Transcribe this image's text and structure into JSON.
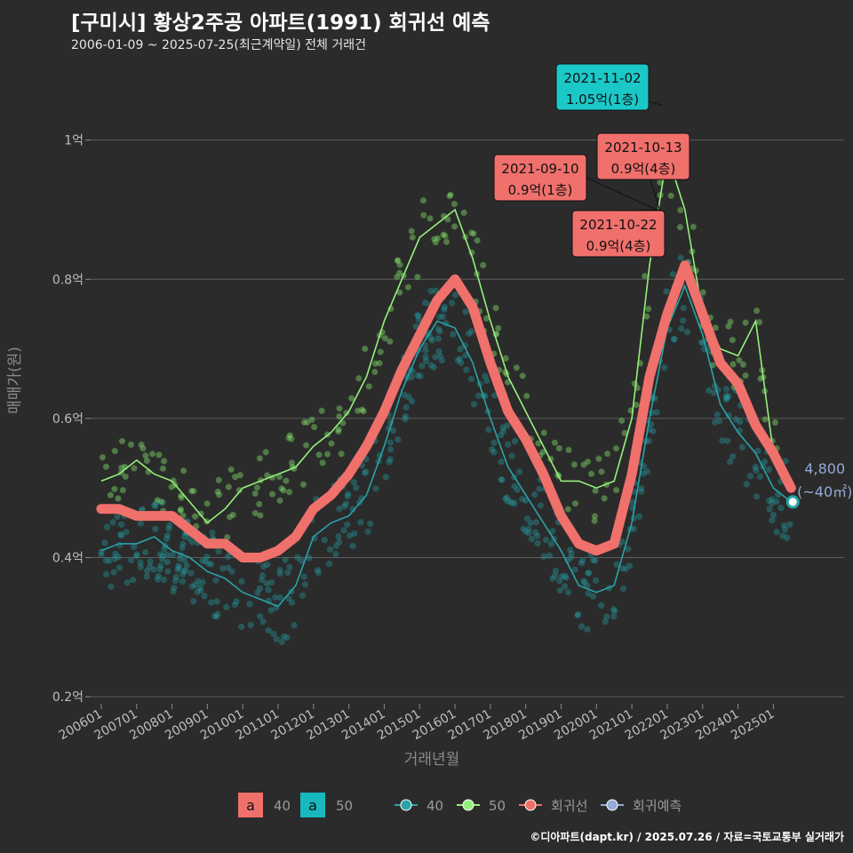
{
  "title": "[구미시] 황상2주공 아파트(1991) 회귀선 예측",
  "subtitle": "2006-01-09 ~ 2025-07-25(최근계약일) 전체 거래건",
  "credit": "©디아파트(dapt.kr) / 2025.07.26 / 자료=국토교통부 실거래가",
  "colors": {
    "s40": "#2aa3a8",
    "s50": "#94f07a",
    "reg": "#f0706c",
    "pred": "#93a9d6",
    "ann_teal": "#1bc8c8",
    "ann_red": "#f0706c",
    "grid": "#5e5e5e"
  },
  "chart_data": {
    "type": "scatter",
    "xlabel": "거래년월",
    "ylabel": "매매가(원)",
    "x_tick_labels": [
      "200601",
      "200701",
      "200801",
      "200901",
      "201001",
      "201101",
      "201201",
      "201301",
      "201401",
      "201501",
      "201601",
      "201701",
      "201801",
      "201901",
      "202001",
      "202101",
      "202201",
      "202301",
      "202401",
      "202501"
    ],
    "y_tick_labels": [
      "0.2억",
      "0.4억",
      "0.6억",
      "0.8억",
      "1억"
    ],
    "y_ticks": [
      0.2,
      0.4,
      0.6,
      0.8,
      1.0
    ],
    "ylim": [
      0.19,
      1.08
    ],
    "xlim": [
      2005.7,
      2027.0
    ],
    "grid": true,
    "legend": {
      "position": "bottom",
      "fill_key": "a",
      "fill_items": [
        {
          "label": "40",
          "color": "#f0706c"
        },
        {
          "label": "50",
          "color": "#17b9be"
        }
      ],
      "line_items": [
        {
          "label": "40",
          "color": "#2aa3a8"
        },
        {
          "label": "50",
          "color": "#94f07a"
        },
        {
          "label": "회귀선",
          "color": "#f0706c"
        },
        {
          "label": "회귀예측",
          "color": "#93a9d6"
        }
      ]
    },
    "series": [
      {
        "name": "40",
        "type": "line",
        "x": [
          2006.0,
          2006.5,
          2007.0,
          2007.5,
          2008.0,
          2008.5,
          2009.0,
          2009.5,
          2010.0,
          2010.5,
          2011.0,
          2011.5,
          2012.0,
          2012.5,
          2013.0,
          2013.5,
          2014.0,
          2014.5,
          2015.0,
          2015.5,
          2016.0,
          2016.5,
          2017.0,
          2017.5,
          2018.0,
          2018.5,
          2019.0,
          2019.5,
          2020.0,
          2020.5,
          2021.0,
          2021.5,
          2022.0,
          2022.5,
          2023.0,
          2023.5,
          2024.0,
          2024.5,
          2025.0,
          2025.5
        ],
        "y": [
          0.41,
          0.42,
          0.42,
          0.43,
          0.41,
          0.4,
          0.38,
          0.37,
          0.35,
          0.34,
          0.33,
          0.36,
          0.43,
          0.45,
          0.46,
          0.49,
          0.56,
          0.64,
          0.7,
          0.74,
          0.73,
          0.68,
          0.6,
          0.53,
          0.49,
          0.45,
          0.41,
          0.36,
          0.35,
          0.36,
          0.45,
          0.6,
          0.73,
          0.79,
          0.72,
          0.62,
          0.58,
          0.55,
          0.5,
          0.48
        ]
      },
      {
        "name": "50",
        "type": "line",
        "x": [
          2006.0,
          2006.5,
          2007.0,
          2007.5,
          2008.0,
          2008.5,
          2009.0,
          2009.5,
          2010.0,
          2010.5,
          2011.0,
          2011.5,
          2012.0,
          2012.5,
          2013.0,
          2013.5,
          2014.0,
          2014.5,
          2015.0,
          2015.5,
          2016.0,
          2016.5,
          2017.0,
          2017.5,
          2018.0,
          2018.5,
          2019.0,
          2019.5,
          2020.0,
          2020.5,
          2021.0,
          2021.5,
          2022.0,
          2022.5,
          2023.0,
          2023.5,
          2024.0,
          2024.5,
          2025.0,
          2025.5
        ],
        "y": [
          0.51,
          0.52,
          0.54,
          0.52,
          0.51,
          0.48,
          0.45,
          0.47,
          0.5,
          0.51,
          0.52,
          0.53,
          0.56,
          0.58,
          0.61,
          0.66,
          0.74,
          0.8,
          0.86,
          0.88,
          0.9,
          0.83,
          0.74,
          0.66,
          0.61,
          0.56,
          0.51,
          0.51,
          0.5,
          0.51,
          0.6,
          0.82,
          0.98,
          0.9,
          0.75,
          0.7,
          0.69,
          0.74,
          0.55,
          0.51
        ]
      },
      {
        "name": "회귀선",
        "type": "line",
        "x": [
          2006.0,
          2006.5,
          2007.0,
          2007.5,
          2008.0,
          2008.5,
          2009.0,
          2009.5,
          2010.0,
          2010.5,
          2011.0,
          2011.5,
          2012.0,
          2012.5,
          2013.0,
          2013.5,
          2014.0,
          2014.5,
          2015.0,
          2015.5,
          2016.0,
          2016.5,
          2017.0,
          2017.5,
          2018.0,
          2018.5,
          2019.0,
          2019.5,
          2020.0,
          2020.5,
          2021.0,
          2021.5,
          2022.0,
          2022.5,
          2023.0,
          2023.5,
          2024.0,
          2024.5,
          2025.0,
          2025.5
        ],
        "y": [
          0.47,
          0.47,
          0.46,
          0.46,
          0.46,
          0.44,
          0.42,
          0.42,
          0.4,
          0.4,
          0.41,
          0.43,
          0.47,
          0.49,
          0.52,
          0.56,
          0.61,
          0.67,
          0.72,
          0.77,
          0.8,
          0.76,
          0.68,
          0.61,
          0.57,
          0.52,
          0.46,
          0.42,
          0.41,
          0.42,
          0.52,
          0.66,
          0.75,
          0.82,
          0.75,
          0.68,
          0.65,
          0.59,
          0.55,
          0.5
        ]
      },
      {
        "name": "회귀예측",
        "type": "point",
        "x": [
          2025.55
        ],
        "y": [
          0.48
        ]
      }
    ],
    "annotations": [
      {
        "date": "2021-11-02",
        "price": "1.05억(1층)",
        "color": "teal",
        "x": 2021.84,
        "y": 1.05
      },
      {
        "date": "2021-10-13",
        "price": "0.9억(4층)",
        "color": "red",
        "x": 2021.78,
        "y": 0.9
      },
      {
        "date": "2021-09-10",
        "price": "0.9억(1층)",
        "color": "red",
        "x": 2021.7,
        "y": 0.9
      },
      {
        "date": "2021-10-22",
        "price": "0.9억(4층)",
        "color": "red",
        "x": 2021.81,
        "y": 0.9
      }
    ],
    "prediction_label": {
      "value": "4,800",
      "area": "(~40㎡)"
    }
  }
}
